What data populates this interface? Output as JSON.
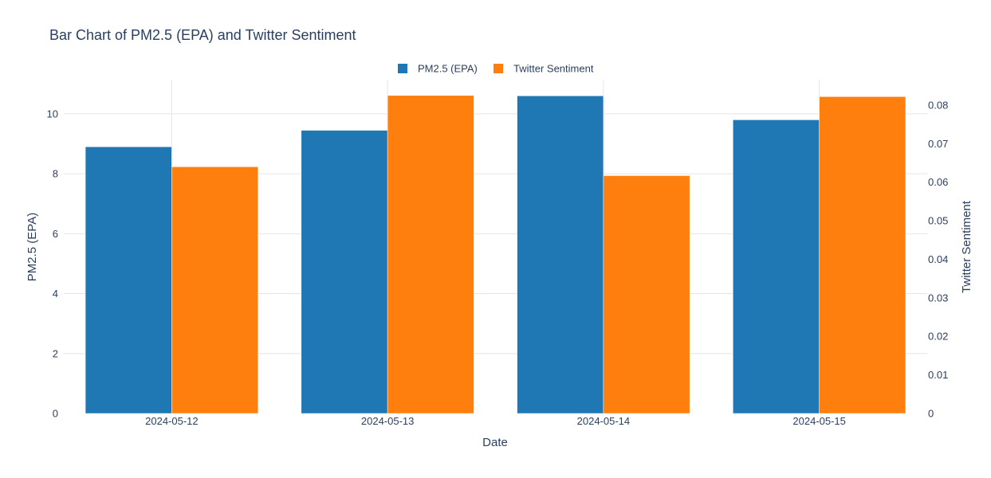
{
  "chart_data": {
    "type": "bar",
    "title": "Bar Chart of PM2.5 (EPA) and Twitter Sentiment",
    "xlabel": "Date",
    "ylabel": "PM2.5 (EPA)",
    "y2label": "Twitter Sentiment",
    "categories": [
      "2024-05-12",
      "2024-05-13",
      "2024-05-14",
      "2024-05-15"
    ],
    "ylim": [
      0,
      11.14
    ],
    "y2lim": [
      0,
      0.0866
    ],
    "yticks": [
      0,
      2,
      4,
      6,
      8,
      10
    ],
    "y2ticks": [
      0,
      0.01,
      0.02,
      0.03,
      0.04,
      0.05,
      0.06,
      0.07,
      0.08
    ],
    "y2tick_labels": [
      "0",
      "0.01",
      "0.02",
      "0.03",
      "0.04",
      "0.05",
      "0.06",
      "0.07",
      "0.08"
    ],
    "series": [
      {
        "name": "PM2.5 (EPA)",
        "axis": "y",
        "color": "#1f77b4",
        "values": [
          8.9,
          9.45,
          10.6,
          9.8
        ]
      },
      {
        "name": "Twitter Sentiment",
        "axis": "y2",
        "color": "#ff7f0e",
        "values": [
          0.064,
          0.0825,
          0.0617,
          0.0822
        ]
      }
    ],
    "legend": "top-center",
    "grid": true
  }
}
